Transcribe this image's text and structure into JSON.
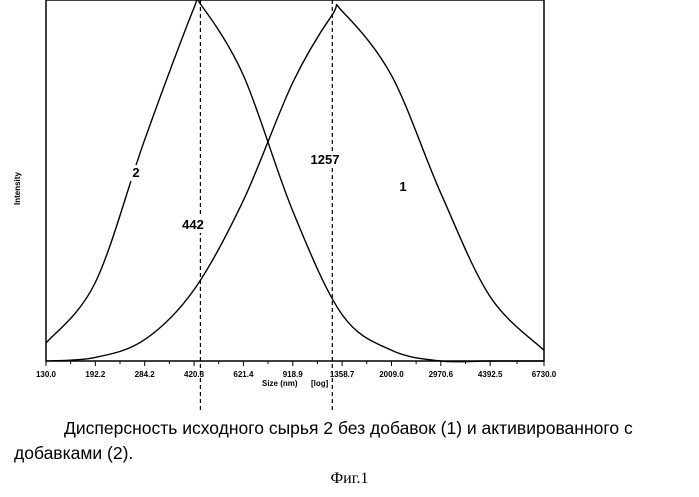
{
  "chart_data": {
    "type": "line",
    "xscale": "log",
    "xlabel": "Size (nm)",
    "xlabel_scale": "[log]",
    "ylabel": "Intensity",
    "x_ticks": [
      "130.0",
      "192.2",
      "284.2",
      "420.3",
      "621.4",
      "918.9",
      "1358.7",
      "2009.0",
      "2970.6",
      "4392.5",
      "6730.0"
    ],
    "xlim": [
      130.0,
      6730.0
    ],
    "ylim": [
      0,
      1.0
    ],
    "grid": false,
    "series": [
      {
        "name": "1",
        "peak_x": 1257,
        "x": [
          130,
          192.2,
          284.2,
          420.3,
          621.4,
          918.9,
          1257,
          1358.7,
          2009.0,
          2970.6,
          4392.5,
          6730
        ],
        "y": [
          0.0,
          0.01,
          0.06,
          0.2,
          0.45,
          0.78,
          0.97,
          0.98,
          0.8,
          0.47,
          0.18,
          0.03
        ]
      },
      {
        "name": "2",
        "peak_x": 442,
        "x": [
          130,
          192.2,
          284.2,
          420.3,
          442,
          621.4,
          918.9,
          1358.7,
          2009.0,
          2970.6,
          4392.5,
          6730
        ],
        "y": [
          0.05,
          0.22,
          0.62,
          0.99,
          1.0,
          0.8,
          0.42,
          0.13,
          0.03,
          0.0,
          0.0,
          0.0
        ]
      }
    ],
    "annotations": [
      "1257",
      "442"
    ]
  },
  "caption": "Дисперсность исходного сырья 2 без добавок (1) и активированного с добавками (2).",
  "figure_label": "Фиг.1"
}
